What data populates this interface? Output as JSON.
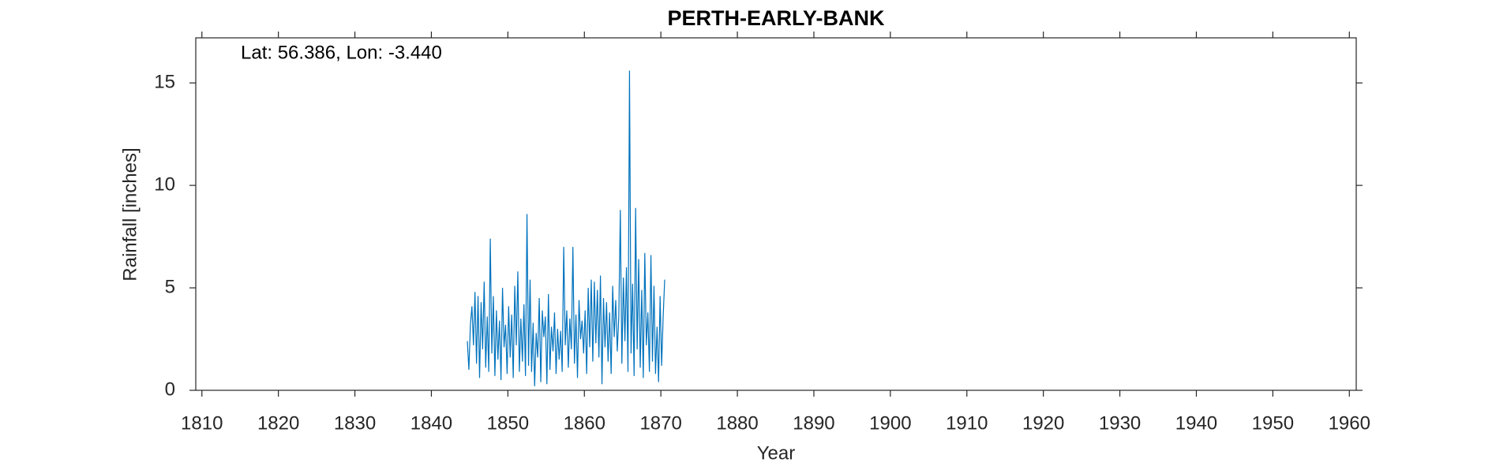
{
  "chart_data": {
    "type": "line",
    "title": "PERTH-EARLY-BANK",
    "annotation": "Lat: 56.386, Lon: -3.440",
    "xlabel": "Year",
    "ylabel": "Rainfall [inches]",
    "xlim": [
      1809.2,
      1960.9
    ],
    "ylim": [
      0,
      17.2
    ],
    "xticks": [
      1810,
      1820,
      1830,
      1840,
      1850,
      1860,
      1870,
      1880,
      1890,
      1900,
      1910,
      1920,
      1930,
      1940,
      1950,
      1960
    ],
    "yticks": [
      0,
      5,
      10,
      15
    ],
    "x": [
      1844.7,
      1844.9,
      1845.1,
      1845.3,
      1845.5,
      1845.7,
      1845.9,
      1846.1,
      1846.3,
      1846.5,
      1846.7,
      1846.9,
      1847.1,
      1847.3,
      1847.5,
      1847.7,
      1847.9,
      1848.1,
      1848.3,
      1848.5,
      1848.7,
      1848.9,
      1849.1,
      1849.3,
      1849.5,
      1849.7,
      1849.9,
      1850.1,
      1850.3,
      1850.5,
      1850.7,
      1850.9,
      1851.1,
      1851.3,
      1851.5,
      1851.7,
      1851.9,
      1852.1,
      1852.3,
      1852.5,
      1852.7,
      1852.9,
      1853.1,
      1853.3,
      1853.5,
      1853.7,
      1853.9,
      1854.1,
      1854.3,
      1854.5,
      1854.7,
      1854.9,
      1855.1,
      1855.3,
      1855.5,
      1855.7,
      1855.9,
      1856.1,
      1856.3,
      1856.5,
      1856.7,
      1856.9,
      1857.1,
      1857.3,
      1857.5,
      1857.7,
      1857.9,
      1858.1,
      1858.3,
      1858.5,
      1858.7,
      1858.9,
      1859.1,
      1859.3,
      1859.5,
      1859.7,
      1859.9,
      1860.1,
      1860.3,
      1860.5,
      1860.7,
      1860.9,
      1861.1,
      1861.3,
      1861.5,
      1861.7,
      1861.9,
      1862.1,
      1862.3,
      1862.5,
      1862.7,
      1862.9,
      1863.1,
      1863.3,
      1863.5,
      1863.7,
      1863.9,
      1864.1,
      1864.3,
      1864.5,
      1864.7,
      1864.9,
      1865.1,
      1865.3,
      1865.5,
      1865.7,
      1865.9,
      1866.1,
      1866.3,
      1866.5,
      1866.7,
      1866.9,
      1867.1,
      1867.3,
      1867.5,
      1867.7,
      1867.9,
      1868.1,
      1868.3,
      1868.5,
      1868.7,
      1868.9,
      1869.1,
      1869.3,
      1869.5,
      1869.7,
      1869.9,
      1870.1,
      1870.3,
      1870.5
    ],
    "series": [
      {
        "color": "#0072bd",
        "values": [
          2.4,
          1.0,
          3.2,
          4.1,
          2.2,
          4.8,
          1.3,
          4.6,
          0.6,
          4.3,
          2.0,
          5.3,
          1.1,
          3.6,
          0.9,
          7.4,
          1.8,
          4.6,
          0.7,
          3.9,
          1.5,
          3.4,
          0.5,
          5.0,
          2.1,
          3.2,
          0.8,
          4.1,
          1.6,
          3.7,
          0.6,
          5.1,
          2.2,
          5.8,
          0.9,
          3.5,
          1.4,
          4.2,
          0.7,
          8.6,
          1.2,
          5.4,
          0.9,
          3.3,
          0.2,
          2.8,
          1.6,
          4.5,
          0.4,
          3.9,
          2.6,
          3.6,
          0.3,
          4.7,
          1.0,
          3.1,
          1.9,
          3.8,
          0.8,
          3.0,
          1.5,
          2.9,
          0.9,
          7.0,
          2.2,
          3.9,
          1.1,
          3.5,
          2.0,
          7.0,
          1.3,
          3.7,
          0.6,
          4.4,
          2.5,
          3.4,
          1.8,
          3.9,
          0.8,
          5.0,
          2.1,
          5.4,
          1.4,
          5.3,
          2.3,
          4.9,
          1.6,
          5.6,
          0.3,
          4.5,
          2.1,
          4.3,
          1.4,
          3.8,
          0.8,
          5.1,
          2.6,
          4.4,
          1.9,
          3.6,
          8.8,
          1.3,
          5.5,
          2.4,
          6.0,
          0.9,
          15.6,
          1.8,
          5.2,
          0.7,
          8.9,
          2.0,
          6.4,
          1.1,
          4.9,
          0.6,
          6.7,
          2.2,
          3.8,
          0.9,
          6.6,
          1.4,
          5.1,
          0.8,
          3.1,
          0.4,
          4.6,
          1.2,
          3.6,
          5.4
        ]
      }
    ]
  }
}
